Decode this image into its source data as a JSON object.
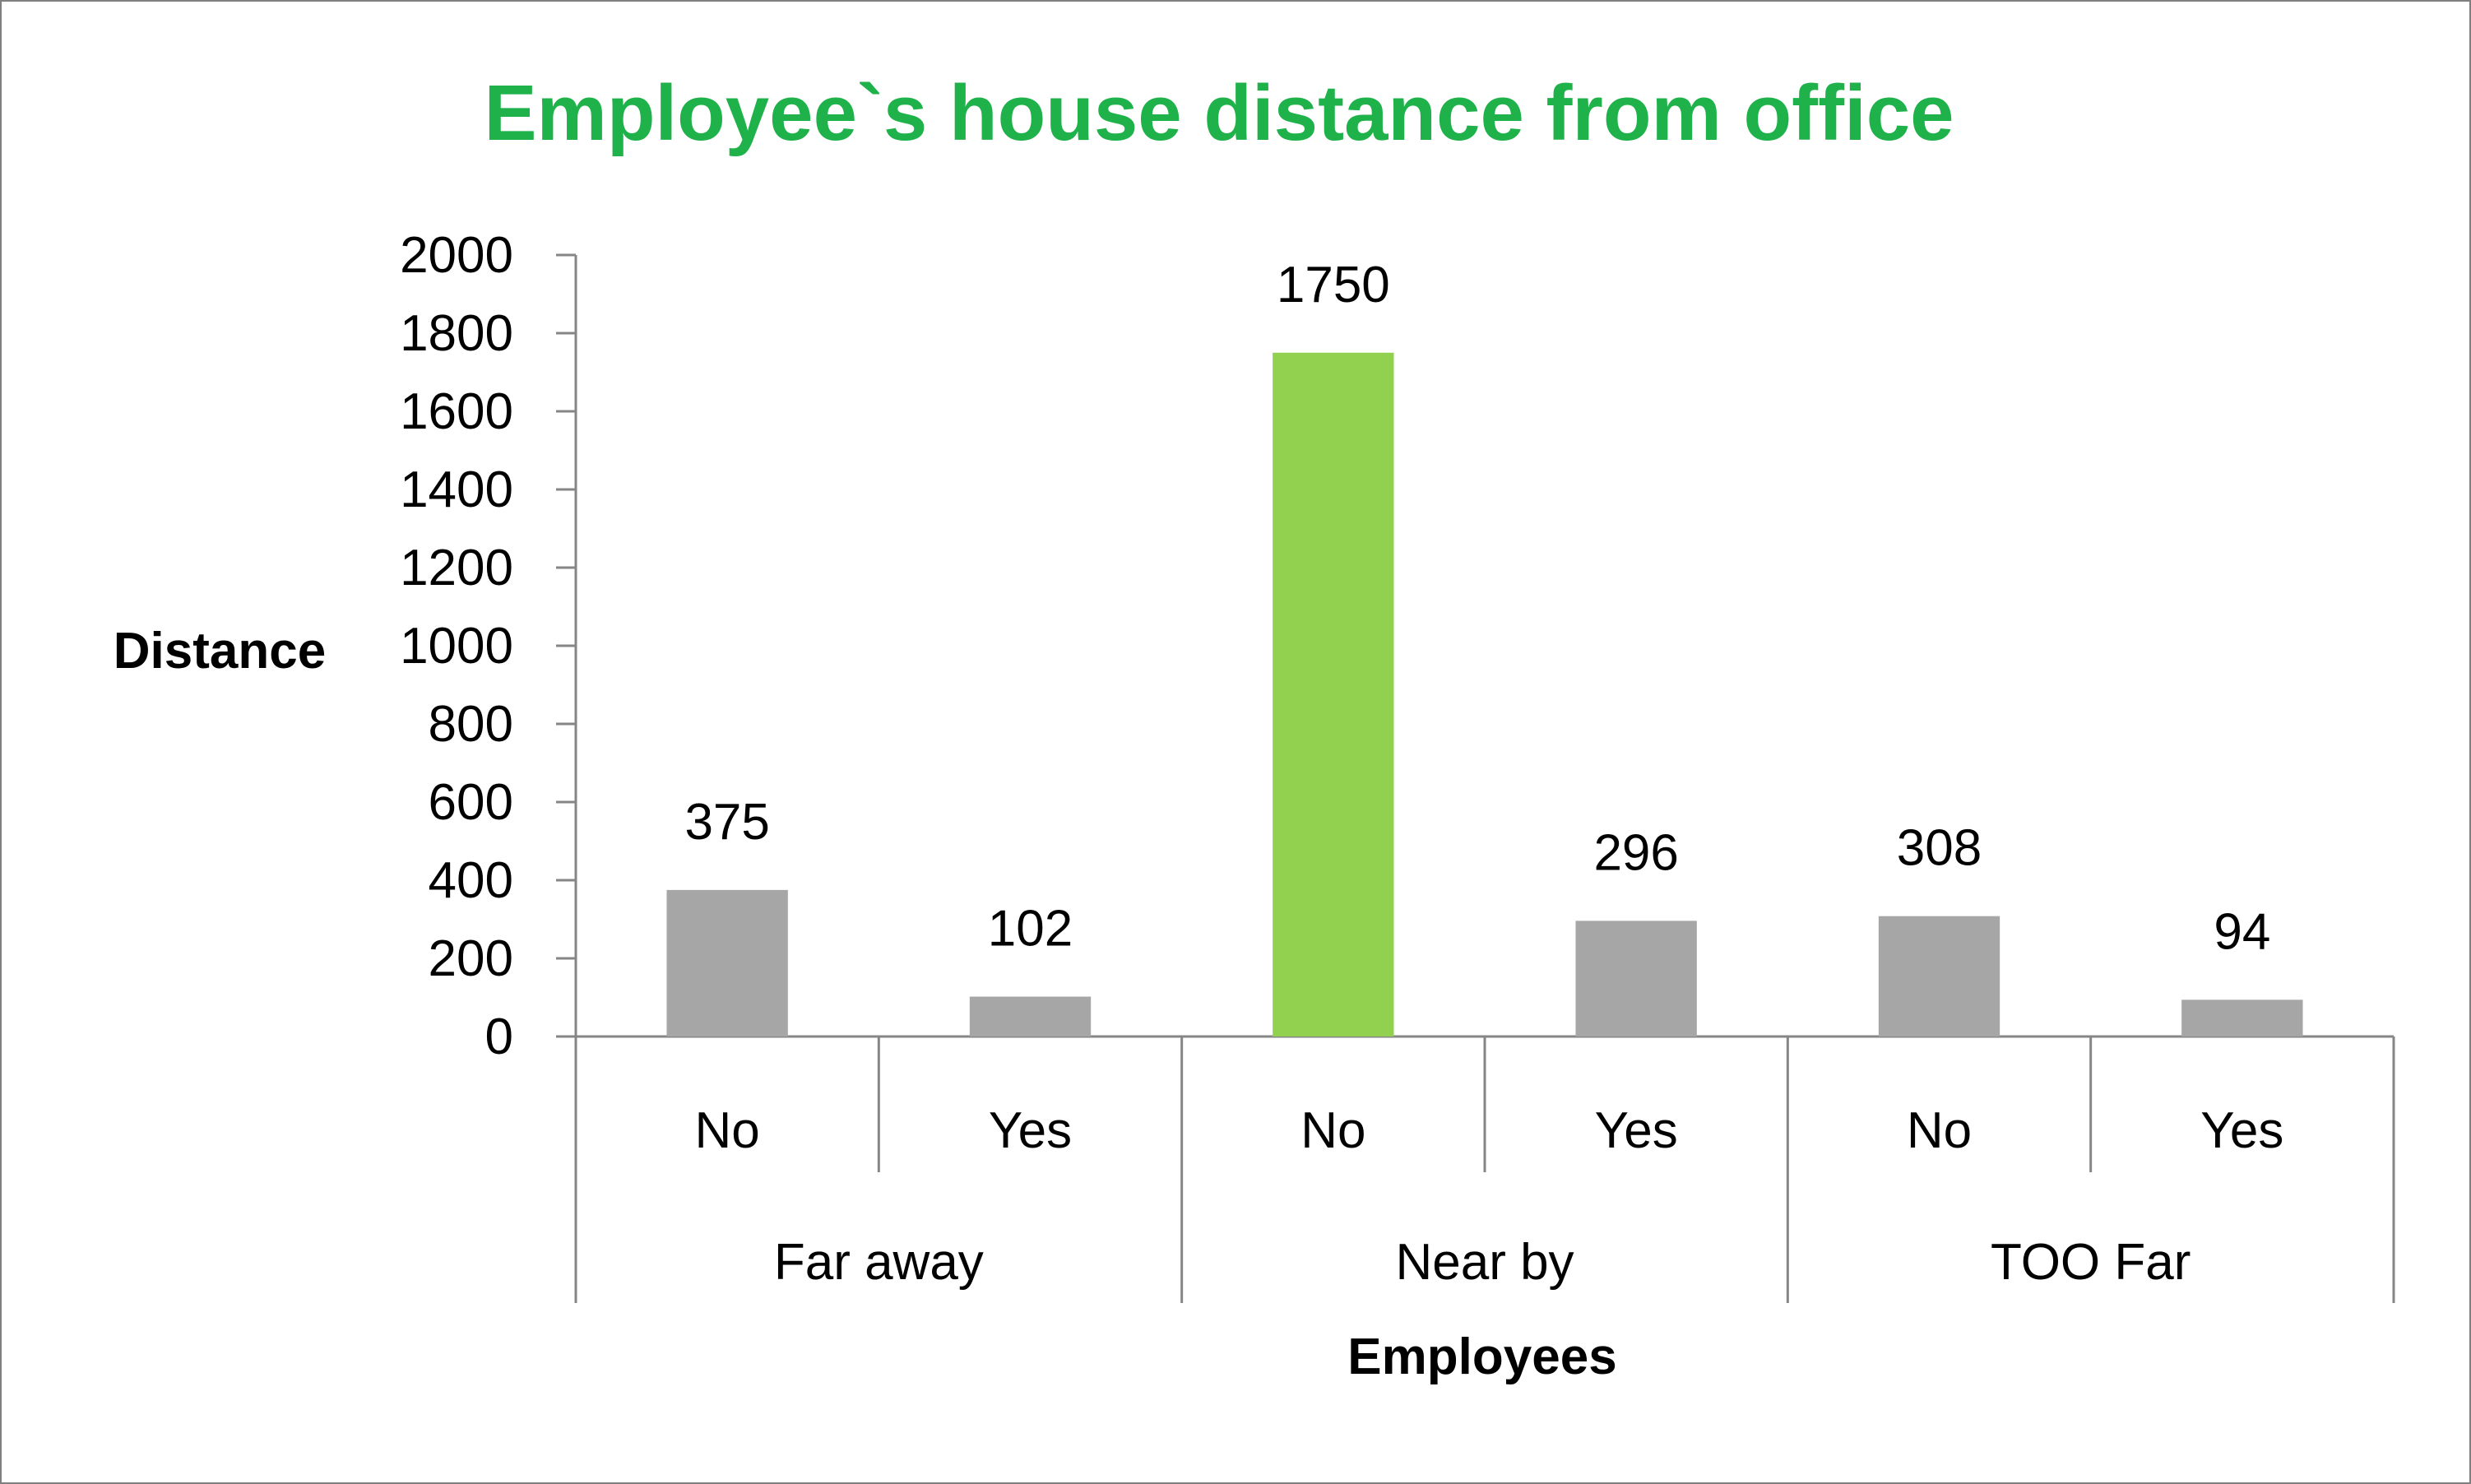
{
  "chart_data": {
    "type": "bar",
    "title": "Employee`s house distance from office",
    "xlabel": "Employees",
    "ylabel": "Distance",
    "ylim": [
      0,
      2000
    ],
    "yticks": [
      0,
      200,
      400,
      600,
      800,
      1000,
      1200,
      1400,
      1600,
      1800,
      2000
    ],
    "groups": [
      {
        "label": "Far away",
        "categories": [
          "No",
          "Yes"
        ],
        "values": [
          375,
          102
        ]
      },
      {
        "label": "Near by",
        "categories": [
          "No",
          "Yes"
        ],
        "values": [
          1750,
          296
        ]
      },
      {
        "label": "TOO Far",
        "categories": [
          "No",
          "Yes"
        ],
        "values": [
          308,
          94
        ]
      }
    ],
    "data_labels": true,
    "grid": false,
    "legend": "none"
  },
  "colors": {
    "title": "#1fb24a",
    "bar_default": "#a6a6a6",
    "bar_highlight": "#92d050",
    "axis": "#868686",
    "text": "#000000",
    "frame": "#7f7f7f"
  }
}
